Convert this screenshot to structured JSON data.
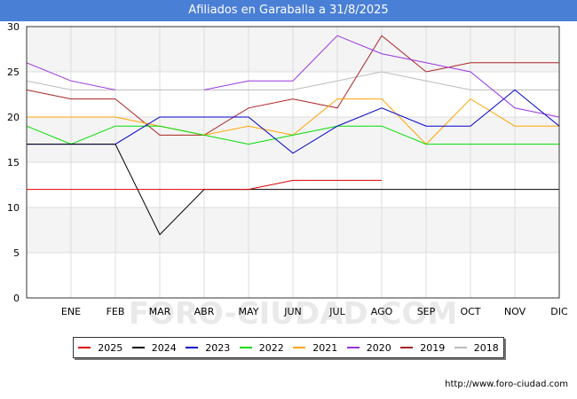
{
  "header": {
    "title": "Afiliados en Garaballa a 31/8/2025"
  },
  "footer": {
    "url": "http://www.foro-ciudad.com"
  },
  "watermark": "FORO-CIUDAD.COM",
  "chart_data": {
    "type": "line",
    "title": "Afiliados en Garaballa a 31/8/2025",
    "xlabel": "",
    "ylabel": "",
    "categories": [
      "",
      "ENE",
      "FEB",
      "MAR",
      "ABR",
      "MAY",
      "JUN",
      "JUL",
      "AGO",
      "SEP",
      "OCT",
      "NOV",
      "DIC"
    ],
    "ylim": [
      0,
      30
    ],
    "yticks": [
      0,
      5,
      10,
      15,
      20,
      25,
      30
    ],
    "grid": true,
    "legend_position": "bottom",
    "series": [
      {
        "name": "2025",
        "color": "#dd0000",
        "values": [
          12,
          12,
          12,
          12,
          12,
          12,
          13,
          13,
          13,
          null,
          null,
          null,
          null
        ]
      },
      {
        "name": "2024",
        "color": "#000000",
        "values": [
          17,
          17,
          17,
          7,
          12,
          12,
          12,
          12,
          12,
          12,
          12,
          12,
          12
        ]
      },
      {
        "name": "2023",
        "color": "#0000cc",
        "values": [
          17,
          17,
          17,
          20,
          20,
          20,
          16,
          19,
          21,
          19,
          19,
          23,
          19
        ]
      },
      {
        "name": "2022",
        "color": "#00dd00",
        "values": [
          19,
          17,
          19,
          19,
          18,
          17,
          18,
          19,
          19,
          17,
          17,
          17,
          17
        ]
      },
      {
        "name": "2021",
        "color": "#ffa500",
        "values": [
          20,
          20,
          20,
          19,
          18,
          19,
          18,
          22,
          22,
          17,
          22,
          19,
          19
        ]
      },
      {
        "name": "2020",
        "color": "#9933dd",
        "values": [
          26,
          24,
          23,
          null,
          23,
          24,
          24,
          29,
          27,
          26,
          25,
          21,
          20
        ]
      },
      {
        "name": "2019",
        "color": "#aa2222",
        "values": [
          23,
          22,
          22,
          18,
          18,
          21,
          22,
          21,
          29,
          25,
          26,
          26,
          26
        ]
      },
      {
        "name": "2018",
        "color": "#bbbbbb",
        "values": [
          24,
          23,
          23,
          23,
          23,
          23,
          23,
          24,
          25,
          24,
          23,
          23,
          23
        ]
      }
    ]
  }
}
